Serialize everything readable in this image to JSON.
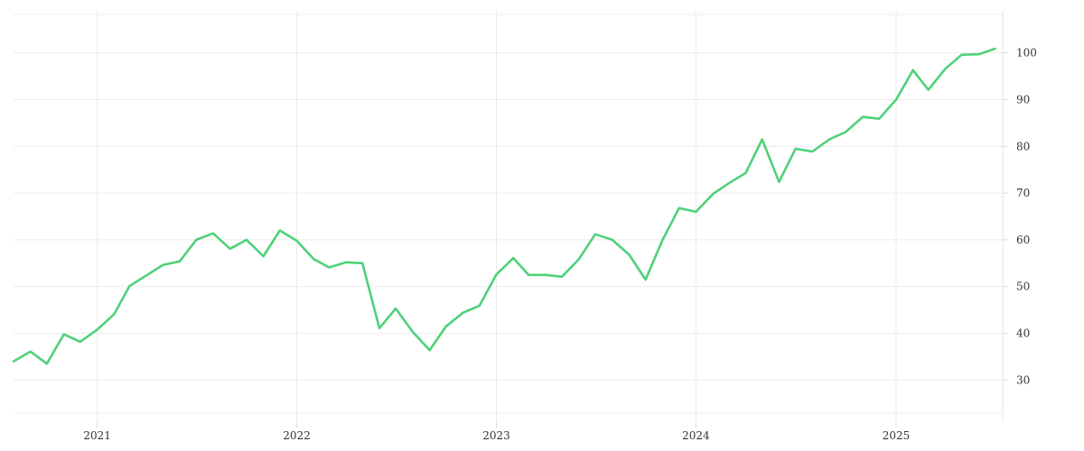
{
  "chart_data": {
    "type": "line",
    "title": "",
    "xlabel": "",
    "ylabel": "",
    "x_axis": {
      "type": "date",
      "range": [
        "2020-08-01",
        "2025-07-15"
      ],
      "ticks": [
        {
          "date": "2021-01-01",
          "label": "2021"
        },
        {
          "date": "2022-01-01",
          "label": "2022"
        },
        {
          "date": "2023-01-01",
          "label": "2023"
        },
        {
          "date": "2024-01-01",
          "label": "2024"
        },
        {
          "date": "2025-01-01",
          "label": "2025"
        }
      ]
    },
    "y_axis": {
      "position": "right",
      "range": [
        21,
        109
      ],
      "ticks": [
        30,
        40,
        50,
        60,
        70,
        80,
        90,
        100
      ]
    },
    "grid": true,
    "legend": "none",
    "series": [
      {
        "color": "#4fd17a",
        "points": [
          [
            "2020-08-01",
            34.0
          ],
          [
            "2020-09-01",
            36.1
          ],
          [
            "2020-10-01",
            33.5
          ],
          [
            "2020-11-01",
            39.8
          ],
          [
            "2020-12-01",
            38.2
          ],
          [
            "2021-01-01",
            40.8
          ],
          [
            "2021-02-01",
            44.1
          ],
          [
            "2021-03-01",
            50.1
          ],
          [
            "2021-04-01",
            52.4
          ],
          [
            "2021-05-01",
            54.6
          ],
          [
            "2021-06-01",
            55.4
          ],
          [
            "2021-07-01",
            60.0
          ],
          [
            "2021-08-01",
            61.4
          ],
          [
            "2021-09-01",
            58.1
          ],
          [
            "2021-10-01",
            60.0
          ],
          [
            "2021-11-01",
            56.5
          ],
          [
            "2021-12-01",
            62.0
          ],
          [
            "2022-01-01",
            59.8
          ],
          [
            "2022-02-01",
            55.9
          ],
          [
            "2022-03-01",
            54.1
          ],
          [
            "2022-04-01",
            55.2
          ],
          [
            "2022-05-01",
            55.0
          ],
          [
            "2022-06-01",
            41.1
          ],
          [
            "2022-07-01",
            45.3
          ],
          [
            "2022-08-01",
            40.3
          ],
          [
            "2022-09-01",
            36.4
          ],
          [
            "2022-10-01",
            41.5
          ],
          [
            "2022-11-01",
            44.4
          ],
          [
            "2022-12-01",
            45.9
          ],
          [
            "2023-01-01",
            52.6
          ],
          [
            "2023-02-01",
            56.1
          ],
          [
            "2023-03-01",
            52.5
          ],
          [
            "2023-04-01",
            52.5
          ],
          [
            "2023-05-01",
            52.1
          ],
          [
            "2023-06-01",
            55.9
          ],
          [
            "2023-07-01",
            61.2
          ],
          [
            "2023-08-01",
            60.0
          ],
          [
            "2023-09-01",
            56.8
          ],
          [
            "2023-10-01",
            51.5
          ],
          [
            "2023-11-01",
            60.0
          ],
          [
            "2023-12-01",
            66.8
          ],
          [
            "2024-01-01",
            66.0
          ],
          [
            "2024-02-01",
            69.8
          ],
          [
            "2024-03-01",
            72.1
          ],
          [
            "2024-04-01",
            74.3
          ],
          [
            "2024-05-01",
            81.5
          ],
          [
            "2024-06-01",
            72.4
          ],
          [
            "2024-07-01",
            79.5
          ],
          [
            "2024-08-01",
            78.9
          ],
          [
            "2024-09-01",
            81.5
          ],
          [
            "2024-10-01",
            83.1
          ],
          [
            "2024-11-01",
            86.3
          ],
          [
            "2024-12-01",
            85.9
          ],
          [
            "2025-01-01",
            90.0
          ],
          [
            "2025-02-01",
            96.3
          ],
          [
            "2025-03-01",
            92.1
          ],
          [
            "2025-04-01",
            96.6
          ],
          [
            "2025-05-01",
            99.6
          ],
          [
            "2025-06-01",
            99.7
          ],
          [
            "2025-07-01",
            100.9
          ]
        ]
      }
    ]
  }
}
